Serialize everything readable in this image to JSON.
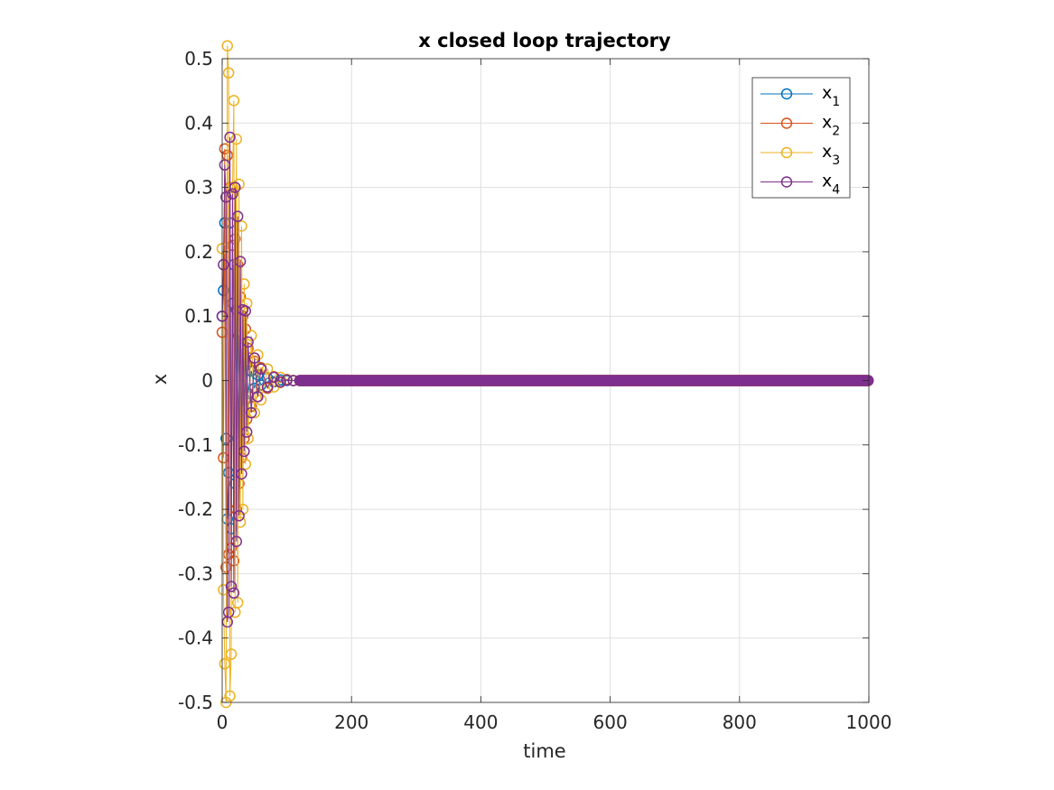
{
  "chart_data": {
    "type": "line",
    "title": "x closed loop trajectory",
    "xlabel": "time",
    "ylabel": "x",
    "xlim": [
      0,
      1000
    ],
    "ylim": [
      -0.5,
      0.5
    ],
    "x_ticks": [
      0,
      200,
      400,
      600,
      800,
      1000
    ],
    "y_ticks": [
      -0.5,
      -0.4,
      -0.3,
      -0.2,
      -0.1,
      0,
      0.1,
      0.2,
      0.3,
      0.4,
      0.5
    ],
    "grid": true,
    "marker": "circle",
    "legend_position": "top-right",
    "series": [
      {
        "name": "x_1",
        "label_main": "x",
        "label_sub": "1",
        "color": "#0072BD",
        "x": [
          0,
          2,
          4,
          6,
          8,
          10,
          12,
          14,
          16,
          18,
          20,
          22,
          24,
          26,
          28,
          30,
          32,
          34,
          36,
          38,
          40,
          45,
          50,
          55,
          60,
          70,
          80,
          90,
          100,
          110,
          120
        ],
        "values": [
          0.1,
          0.14,
          0.245,
          -0.09,
          -0.215,
          -0.143,
          0.245,
          -0.23,
          0.12,
          0.18,
          -0.16,
          0.11,
          -0.09,
          0.07,
          -0.06,
          0.05,
          -0.04,
          0.035,
          -0.03,
          0.025,
          -0.02,
          0.015,
          -0.012,
          0.009,
          -0.007,
          0.004,
          -0.002,
          0.001,
          0.0,
          0.0,
          0.0
        ]
      },
      {
        "name": "x_2",
        "label_main": "x",
        "label_sub": "2",
        "color": "#D95319",
        "x": [
          0,
          2,
          4,
          6,
          8,
          10,
          12,
          14,
          16,
          18,
          20,
          22,
          24,
          26,
          28,
          30,
          32,
          34,
          36,
          38,
          40,
          45,
          50,
          55,
          60,
          70,
          80,
          90,
          100,
          110,
          120
        ],
        "values": [
          0.075,
          -0.12,
          0.36,
          -0.29,
          0.35,
          -0.27,
          0.3,
          -0.26,
          0.21,
          -0.28,
          0.22,
          -0.2,
          0.18,
          -0.16,
          0.13,
          -0.12,
          0.1,
          -0.09,
          0.08,
          -0.06,
          0.05,
          -0.04,
          0.03,
          -0.025,
          0.02,
          -0.012,
          0.006,
          -0.003,
          0.001,
          0.0,
          0.0
        ]
      },
      {
        "name": "x_3",
        "label_main": "x",
        "label_sub": "3",
        "color": "#EDB120",
        "x": [
          0,
          2,
          4,
          6,
          8,
          10,
          12,
          14,
          16,
          18,
          20,
          22,
          24,
          26,
          28,
          30,
          32,
          34,
          36,
          38,
          40,
          45,
          50,
          55,
          60,
          70,
          80,
          90,
          100,
          110,
          120
        ],
        "values": [
          0.205,
          -0.325,
          -0.44,
          -0.5,
          0.52,
          0.478,
          -0.49,
          -0.425,
          0.3,
          0.435,
          -0.36,
          0.375,
          -0.345,
          0.305,
          -0.22,
          0.24,
          -0.2,
          0.15,
          -0.13,
          0.12,
          -0.09,
          0.07,
          -0.05,
          0.04,
          -0.03,
          0.018,
          -0.01,
          0.005,
          0.002,
          0.0,
          0.0
        ]
      },
      {
        "name": "x_4",
        "label_main": "x",
        "label_sub": "4",
        "color": "#7E2F8E",
        "x": [
          0,
          2,
          4,
          6,
          8,
          10,
          12,
          14,
          16,
          18,
          20,
          22,
          24,
          26,
          28,
          30,
          32,
          34,
          36,
          38,
          40,
          45,
          50,
          55,
          60,
          70,
          80,
          90,
          100,
          110,
          120
        ],
        "values": [
          0.1,
          0.18,
          0.335,
          0.285,
          -0.375,
          -0.36,
          0.378,
          -0.32,
          0.29,
          -0.33,
          0.3,
          -0.25,
          0.255,
          -0.21,
          0.185,
          -0.145,
          0.11,
          -0.11,
          0.108,
          -0.08,
          0.06,
          -0.05,
          0.035,
          -0.025,
          0.018,
          -0.01,
          0.005,
          -0.002,
          0.001,
          0.0,
          0.0
        ]
      }
    ]
  }
}
